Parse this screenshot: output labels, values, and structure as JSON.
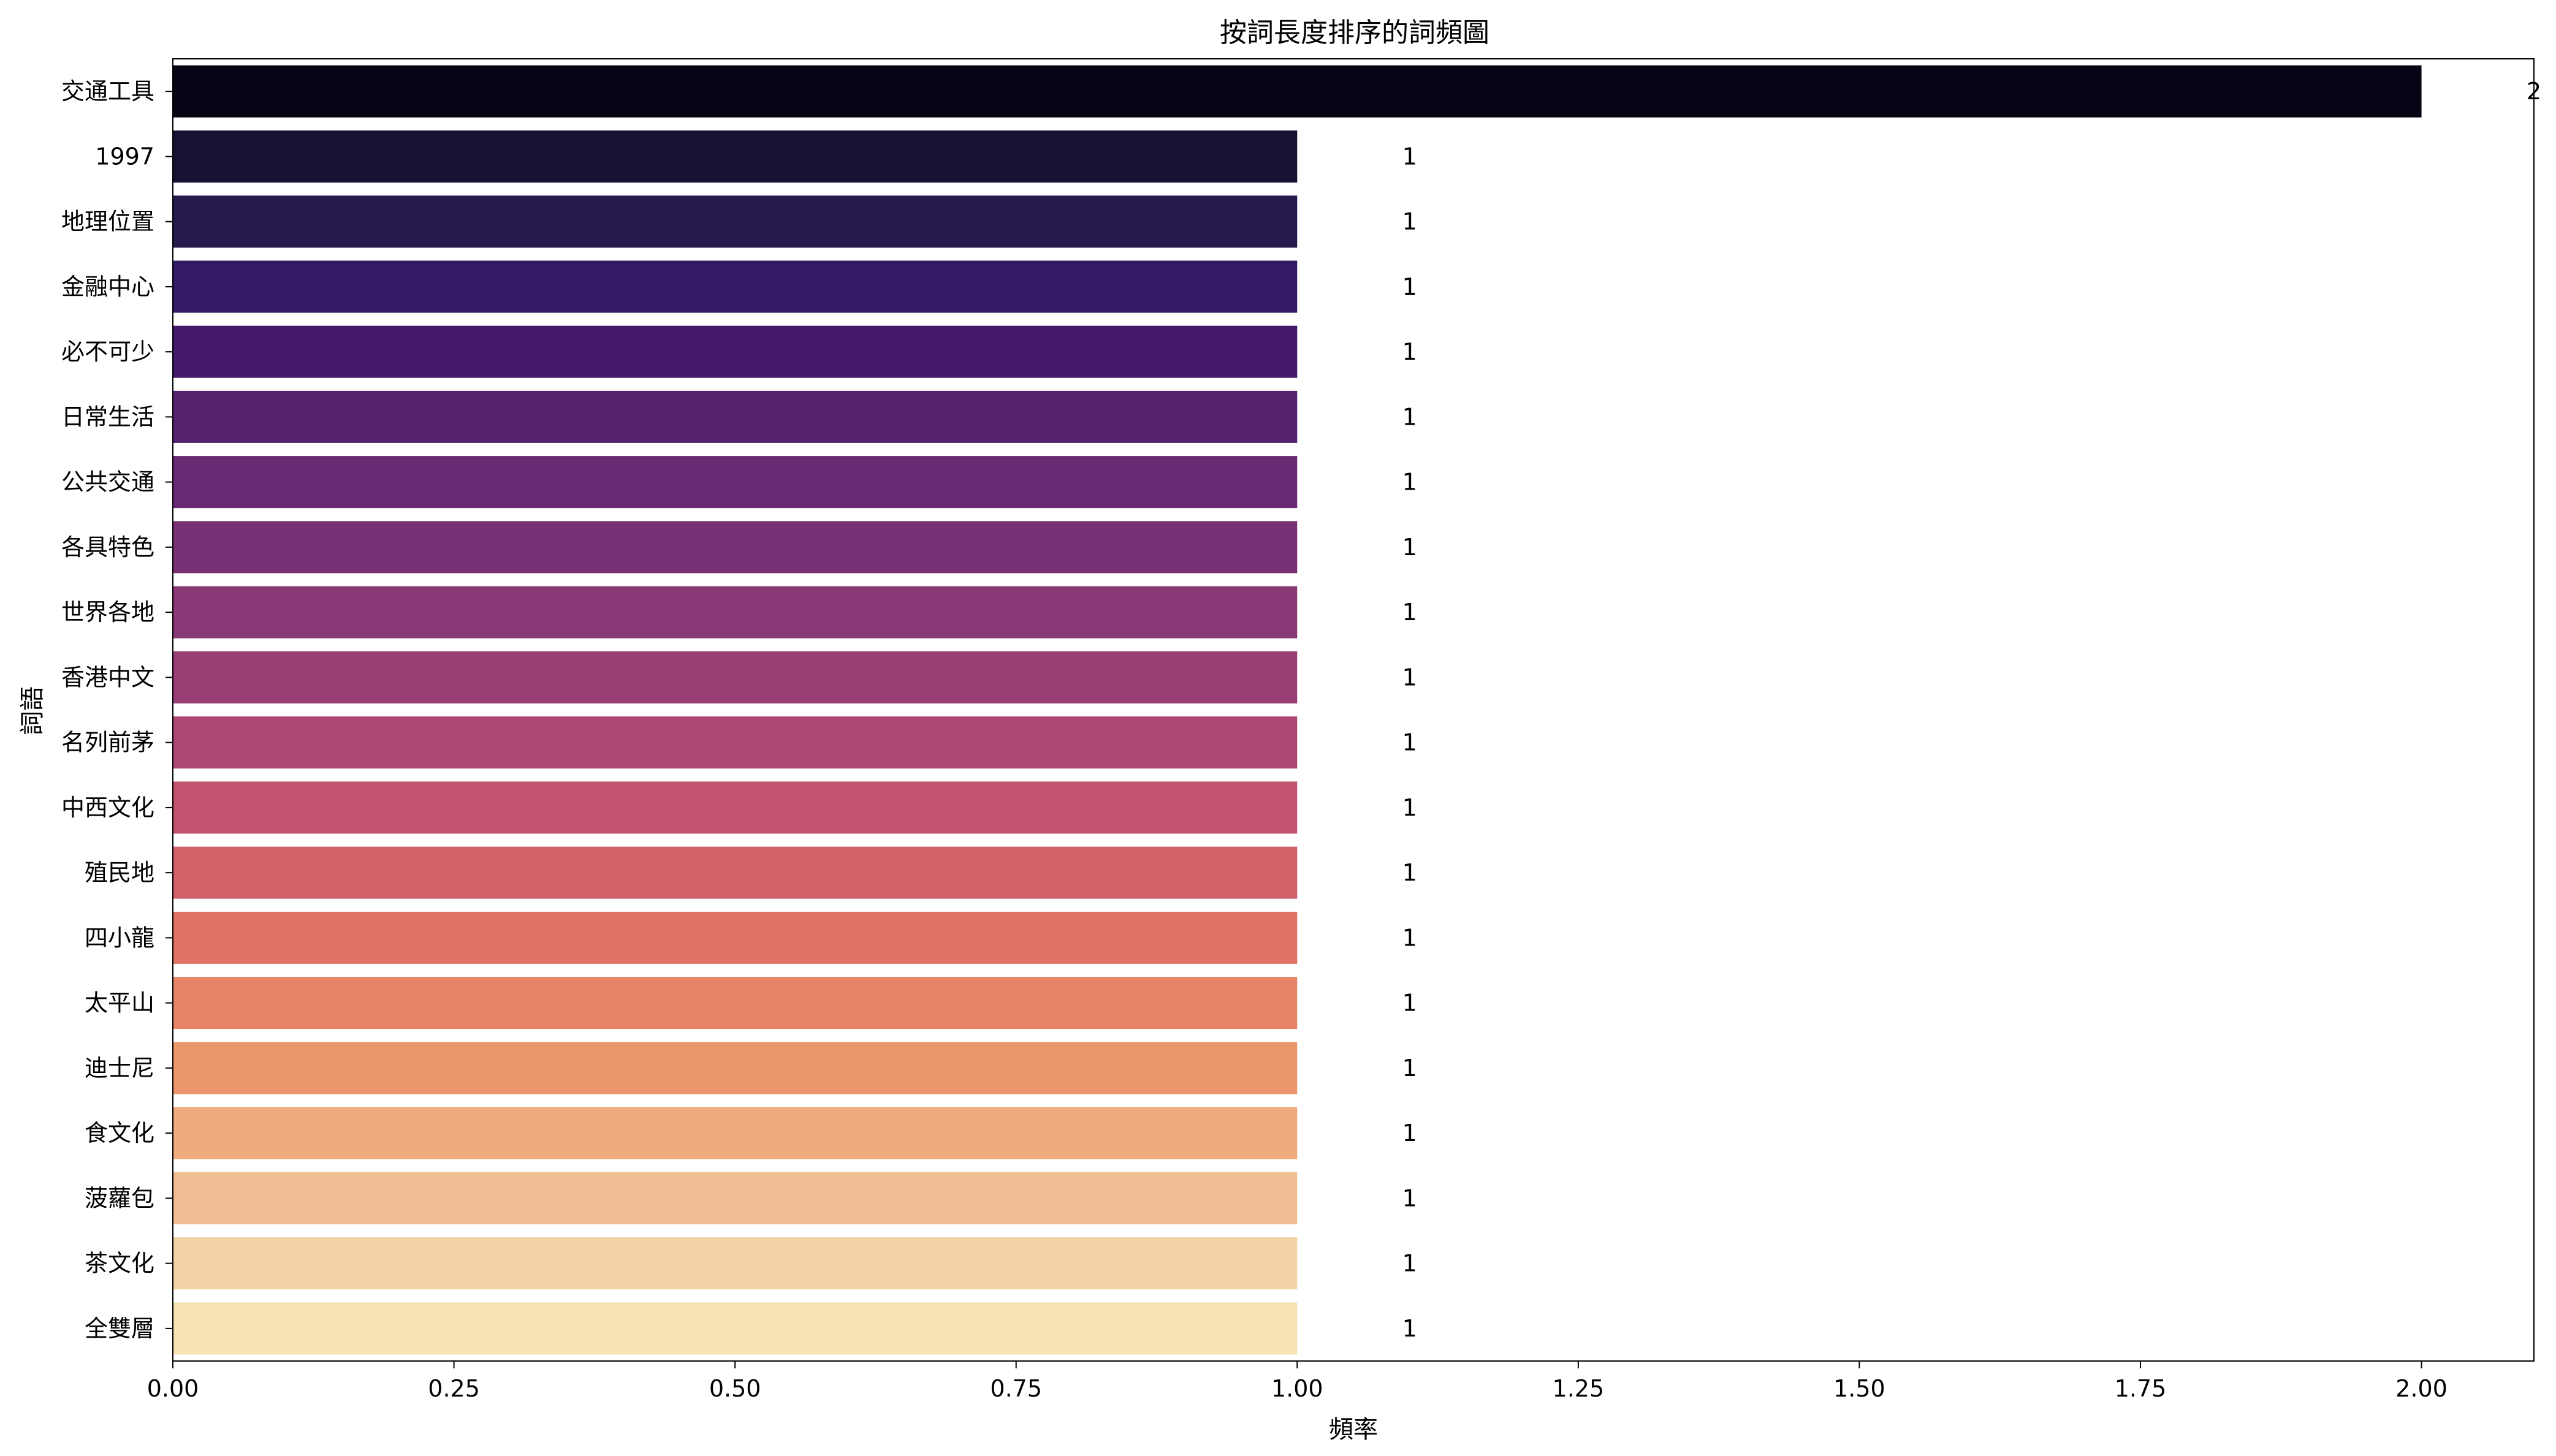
{
  "chart_data": {
    "type": "bar",
    "orientation": "horizontal",
    "title": "按詞長度排序的詞頻圖",
    "xlabel": "頻率",
    "ylabel": "詞語",
    "xlim": [
      0,
      2.1
    ],
    "x_ticks": [
      "0.00",
      "0.25",
      "0.50",
      "0.75",
      "1.00",
      "1.25",
      "1.50",
      "1.75",
      "2.00"
    ],
    "grid": false,
    "legend": "none",
    "palette": "magma",
    "categories": [
      "交通工具",
      "1997",
      "地理位置",
      "金融中心",
      "必不可少",
      "日常生活",
      "公共交通",
      "各具特色",
      "世界各地",
      "香港中文",
      "名列前茅",
      "中西文化",
      "殖民地",
      "四小龍",
      "太平山",
      "迪士尼",
      "食文化",
      "菠蘿包",
      "茶文化",
      "全雙層"
    ],
    "values": [
      2,
      1,
      1,
      1,
      1,
      1,
      1,
      1,
      1,
      1,
      1,
      1,
      1,
      1,
      1,
      1,
      1,
      1,
      1,
      1
    ],
    "data_labels": [
      "2",
      "1",
      "1",
      "1",
      "1",
      "1",
      "1",
      "1",
      "1",
      "1",
      "1",
      "1",
      "1",
      "1",
      "1",
      "1",
      "1",
      "1",
      "1",
      "1"
    ],
    "colors": [
      "#050415",
      "#171232",
      "#261a4d",
      "#341a64",
      "#461a6b",
      "#562270",
      "#672a73",
      "#773174",
      "#883976",
      "#9a3f75",
      "#ad4773",
      "#c1536f",
      "#d2616a",
      "#df7265",
      "#e78367",
      "#ec976b",
      "#efab7e",
      "#f1be93",
      "#f3d2a5",
      "#f5e3b6"
    ]
  }
}
